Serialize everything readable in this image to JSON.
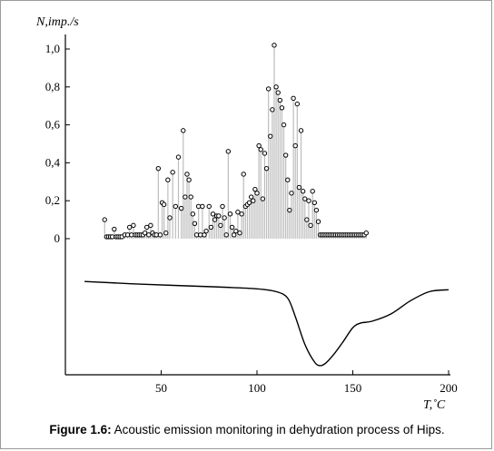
{
  "caption": {
    "label": "Figure 1.6:",
    "text": " Acoustic emission monitoring in dehydration process of Hips."
  },
  "chart_data": {
    "type": "scatter",
    "ylabel": "N,imp./s",
    "xlabel": "T,˚C",
    "xlim": [
      0,
      200
    ],
    "ylim": [
      0,
      1.0
    ],
    "xticks": [
      "50",
      "100",
      "150",
      "200"
    ],
    "yticks": [
      "0",
      "0,2",
      "0,4",
      "0,6",
      "0,8",
      "1,0"
    ],
    "grid": false,
    "series": [
      {
        "style": "stems",
        "x": [
          20.5,
          21.5,
          22.5,
          23.5,
          24.5,
          25.5,
          26.5,
          27.5,
          28.5,
          29.5,
          31,
          32.5,
          33.5,
          34.5,
          35.5,
          36.5,
          37.5,
          38.5,
          39.5,
          40.5,
          41.5,
          42.5,
          43.5,
          44.5,
          45.5,
          46.5,
          47.5,
          48.5,
          49.5,
          50.5,
          51.5,
          52.5,
          53.5,
          54.5,
          56,
          57.5,
          59,
          60.5,
          61.5,
          62.5,
          63.5,
          64.5,
          65.5,
          66.5,
          67.5,
          68.5,
          69.5,
          70.5,
          71.5,
          72.5,
          73.5,
          75,
          76,
          77,
          78,
          79,
          80,
          81,
          82,
          83,
          84,
          85,
          86,
          87,
          88,
          89,
          90,
          91,
          92,
          93,
          94,
          95,
          96,
          97,
          98,
          99,
          100,
          101,
          102,
          103,
          104,
          105,
          106,
          107,
          108,
          109,
          110,
          111,
          112,
          113,
          114,
          115,
          116,
          117,
          118,
          119,
          120,
          121,
          122,
          123,
          124,
          125,
          126,
          127,
          128,
          129,
          130,
          131,
          132,
          133,
          134,
          135,
          136,
          137,
          138,
          139,
          140,
          141,
          142,
          143,
          144,
          145,
          146,
          147,
          148,
          149,
          150,
          151,
          152,
          153,
          154,
          155,
          156,
          157
        ],
        "y": [
          0.1,
          0.01,
          0.01,
          0.01,
          0.01,
          0.05,
          0.01,
          0.01,
          0.01,
          0.01,
          0.02,
          0.02,
          0.06,
          0.02,
          0.07,
          0.02,
          0.02,
          0.02,
          0.02,
          0.02,
          0.03,
          0.06,
          0.02,
          0.07,
          0.03,
          0.02,
          0.02,
          0.37,
          0.02,
          0.19,
          0.18,
          0.03,
          0.31,
          0.11,
          0.35,
          0.17,
          0.43,
          0.16,
          0.57,
          0.22,
          0.34,
          0.31,
          0.22,
          0.13,
          0.08,
          0.02,
          0.17,
          0.02,
          0.17,
          0.02,
          0.04,
          0.17,
          0.06,
          0.13,
          0.1,
          0.12,
          0.12,
          0.07,
          0.17,
          0.11,
          0.02,
          0.46,
          0.13,
          0.06,
          0.02,
          0.04,
          0.14,
          0.03,
          0.13,
          0.34,
          0.17,
          0.18,
          0.19,
          0.22,
          0.2,
          0.26,
          0.24,
          0.49,
          0.47,
          0.21,
          0.45,
          0.37,
          0.79,
          0.54,
          0.68,
          1.02,
          0.8,
          0.77,
          0.73,
          0.69,
          0.6,
          0.44,
          0.31,
          0.15,
          0.24,
          0.74,
          0.49,
          0.71,
          0.27,
          0.57,
          0.25,
          0.21,
          0.1,
          0.2,
          0.07,
          0.25,
          0.19,
          0.15,
          0.09,
          0.02,
          0.02,
          0.02,
          0.02,
          0.02,
          0.02,
          0.02,
          0.02,
          0.02,
          0.02,
          0.02,
          0.02,
          0.02,
          0.02,
          0.02,
          0.02,
          0.02,
          0.02,
          0.02,
          0.02,
          0.02,
          0.02,
          0.02,
          0.02,
          0.03
        ]
      },
      {
        "style": "line",
        "x": [
          10,
          40,
          80,
          100,
          110,
          116,
          120,
          125,
          130,
          133,
          136,
          140,
          145,
          150,
          154,
          160,
          170,
          180,
          190,
          200
        ],
        "y": [
          0.93,
          0.9,
          0.87,
          0.85,
          0.82,
          0.75,
          0.55,
          0.25,
          0.06,
          0.02,
          0.05,
          0.14,
          0.28,
          0.43,
          0.48,
          0.5,
          0.58,
          0.72,
          0.82,
          0.84
        ]
      }
    ]
  }
}
